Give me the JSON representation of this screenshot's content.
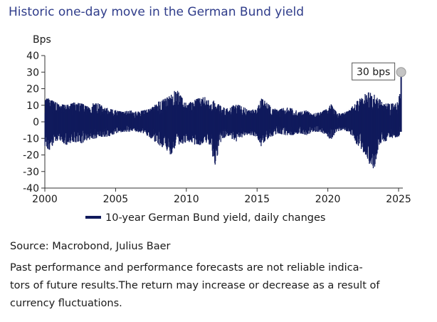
{
  "title": "Historic one-day move in the German Bund yield",
  "chart_data": {
    "type": "bar",
    "title": "Historic one-day move in the German Bund yield",
    "ylabel": "Bps",
    "xlabel": "",
    "ylim": [
      -40,
      40
    ],
    "xlim": [
      2000,
      2025.3
    ],
    "y_ticks": [
      "40",
      "30",
      "20",
      "10",
      "0",
      "-10",
      "-20",
      "-30",
      "-40"
    ],
    "x_ticks": [
      "2000",
      "2005",
      "2010",
      "2015",
      "2020",
      "2025"
    ],
    "series": [
      {
        "name": "10-year German Bund yield, daily changes",
        "color": "#101a5c",
        "note": "Daily changes; approximate envelope of the daily values (bps) read at selected dates",
        "x": [
          2000.0,
          2000.3,
          2000.7,
          2001.0,
          2001.5,
          2002.0,
          2002.6,
          2003.0,
          2003.6,
          2004.0,
          2004.5,
          2005.0,
          2005.5,
          2006.0,
          2006.5,
          2007.0,
          2007.5,
          2008.0,
          2008.5,
          2008.9,
          2009.3,
          2009.8,
          2010.3,
          2010.8,
          2011.3,
          2011.7,
          2012.0,
          2012.5,
          2013.0,
          2013.5,
          2014.0,
          2014.5,
          2015.0,
          2015.3,
          2015.5,
          2016.0,
          2016.5,
          2017.0,
          2017.5,
          2018.0,
          2018.5,
          2019.0,
          2019.5,
          2020.0,
          2020.2,
          2020.6,
          2021.0,
          2021.5,
          2022.0,
          2022.4,
          2022.8,
          2023.2,
          2023.6,
          2024.0,
          2024.5,
          2025.0,
          2025.18
        ],
        "high": [
          15,
          14,
          12,
          11,
          10,
          12,
          11,
          10,
          12,
          10,
          8,
          7,
          6,
          7,
          6,
          7,
          8,
          12,
          14,
          16,
          20,
          13,
          12,
          14,
          15,
          12,
          13,
          9,
          8,
          11,
          9,
          7,
          8,
          14,
          13,
          9,
          7,
          9,
          8,
          6,
          7,
          5,
          6,
          8,
          11,
          6,
          5,
          7,
          12,
          15,
          18,
          17,
          14,
          11,
          11,
          12,
          30
        ],
        "low": [
          -15,
          -18,
          -12,
          -11,
          -14,
          -12,
          -13,
          -11,
          -10,
          -9,
          -9,
          -7,
          -6,
          -6,
          -6,
          -7,
          -10,
          -14,
          -16,
          -20,
          -14,
          -13,
          -12,
          -15,
          -12,
          -14,
          -27,
          -10,
          -9,
          -12,
          -9,
          -8,
          -9,
          -15,
          -12,
          -9,
          -7,
          -8,
          -8,
          -7,
          -8,
          -6,
          -6,
          -9,
          -11,
          -6,
          -5,
          -6,
          -13,
          -17,
          -22,
          -32,
          -14,
          -12,
          -10,
          -9,
          -6
        ]
      }
    ],
    "annotations": [
      {
        "text": "30 bps",
        "x": 2025.18,
        "y": 30
      }
    ],
    "legend": "bottom",
    "grid": false
  },
  "legend_label": "10-year German Bund yield, daily changes",
  "source": "Source: Macrobond, Julius Baer",
  "disclaimer_lines": [
    "Past performance and performance forecasts are not reliable indica-",
    "tors of future results.The return may increase or decrease as a result of",
    "currency fluctuations."
  ]
}
